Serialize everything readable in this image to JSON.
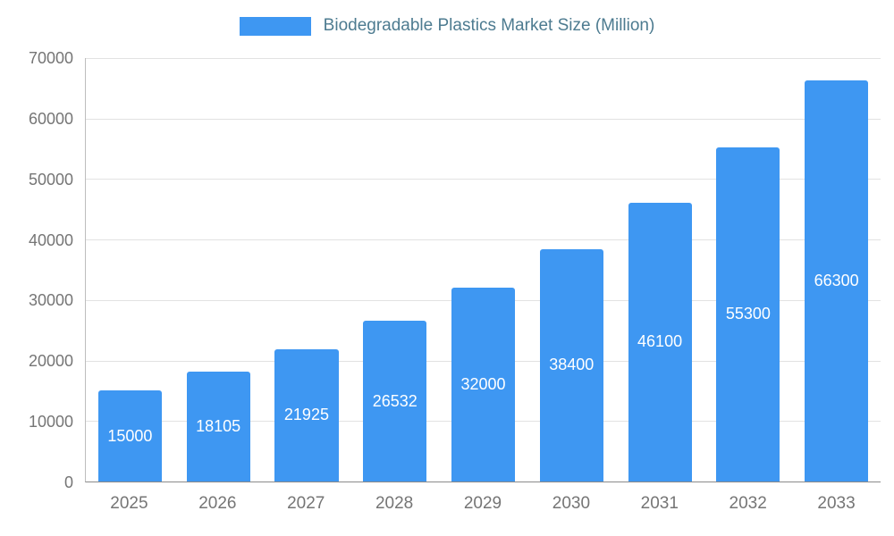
{
  "chart_data": {
    "type": "bar",
    "title": "Biodegradable Plastics Market Size (Million)",
    "categories": [
      "2025",
      "2026",
      "2027",
      "2028",
      "2029",
      "2030",
      "2031",
      "2032",
      "2033"
    ],
    "values": [
      15000,
      18105,
      21925,
      26532,
      32000,
      38400,
      46100,
      55300,
      66300
    ],
    "series": [
      {
        "name": "Biodegradable Plastics Market Size (Million)",
        "values": [
          15000,
          18105,
          21925,
          26532,
          32000,
          38400,
          46100,
          55300,
          66300
        ]
      }
    ],
    "xlabel": "",
    "ylabel": "",
    "ylim": [
      0,
      70000
    ],
    "yticks": [
      0,
      10000,
      20000,
      30000,
      40000,
      50000,
      60000,
      70000
    ],
    "grid": true,
    "legend_position": "top",
    "colors": {
      "bar": "#3e97f2",
      "bar_value_label": "#ffffff",
      "axis_tick_label": "#757575",
      "legend_text": "#4d7b90",
      "gridline": "#e2e2e2",
      "baseline": "#8a8a8a"
    }
  }
}
